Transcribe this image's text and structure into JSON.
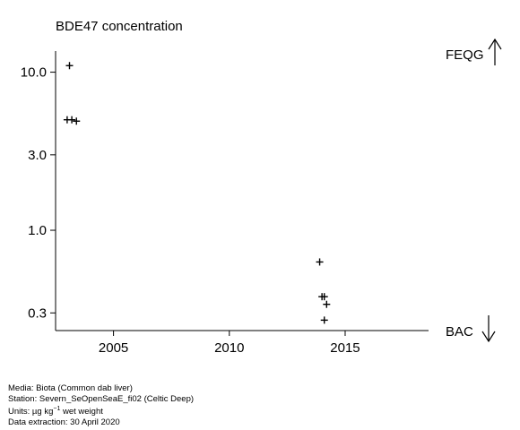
{
  "chart_data": {
    "type": "scatter",
    "title": "BDE47 concentration",
    "y_scale": "log",
    "xlim": [
      2002.5,
      2018.6
    ],
    "ylim": [
      0.232,
      13.6
    ],
    "x_ticks": [
      2005,
      2010,
      2015
    ],
    "x_tick_labels": [
      "2005",
      "2010",
      "2015"
    ],
    "y_ticks": [
      0.3,
      1.0,
      3.0,
      10.0
    ],
    "y_tick_labels": [
      "0.3",
      "1.0",
      "3.0",
      "10.0"
    ],
    "marker": "plus",
    "marker_color": "#000000",
    "grid": false,
    "points": [
      {
        "x": 2003.1,
        "y": 11.0
      },
      {
        "x": 2003.0,
        "y": 5.0
      },
      {
        "x": 2003.2,
        "y": 5.0
      },
      {
        "x": 2003.4,
        "y": 4.9
      },
      {
        "x": 2013.9,
        "y": 0.63
      },
      {
        "x": 2014.0,
        "y": 0.38
      },
      {
        "x": 2014.1,
        "y": 0.38
      },
      {
        "x": 2014.2,
        "y": 0.34
      },
      {
        "x": 2014.1,
        "y": 0.27
      }
    ],
    "reference_labels": {
      "upper": {
        "label": "FEQG",
        "arrow": "up"
      },
      "lower": {
        "label": "BAC",
        "arrow": "down"
      }
    }
  },
  "footer": {
    "media": "Media: Biota (Common dab liver)",
    "station": "Station: Severn_SeOpenSeaE_fi02 (Celtic Deep)",
    "units_prefix": "Units:  µg kg",
    "units_exp": "−1",
    "units_suffix": " wet weight",
    "extraction": "Data extraction: 30 April 2020"
  }
}
